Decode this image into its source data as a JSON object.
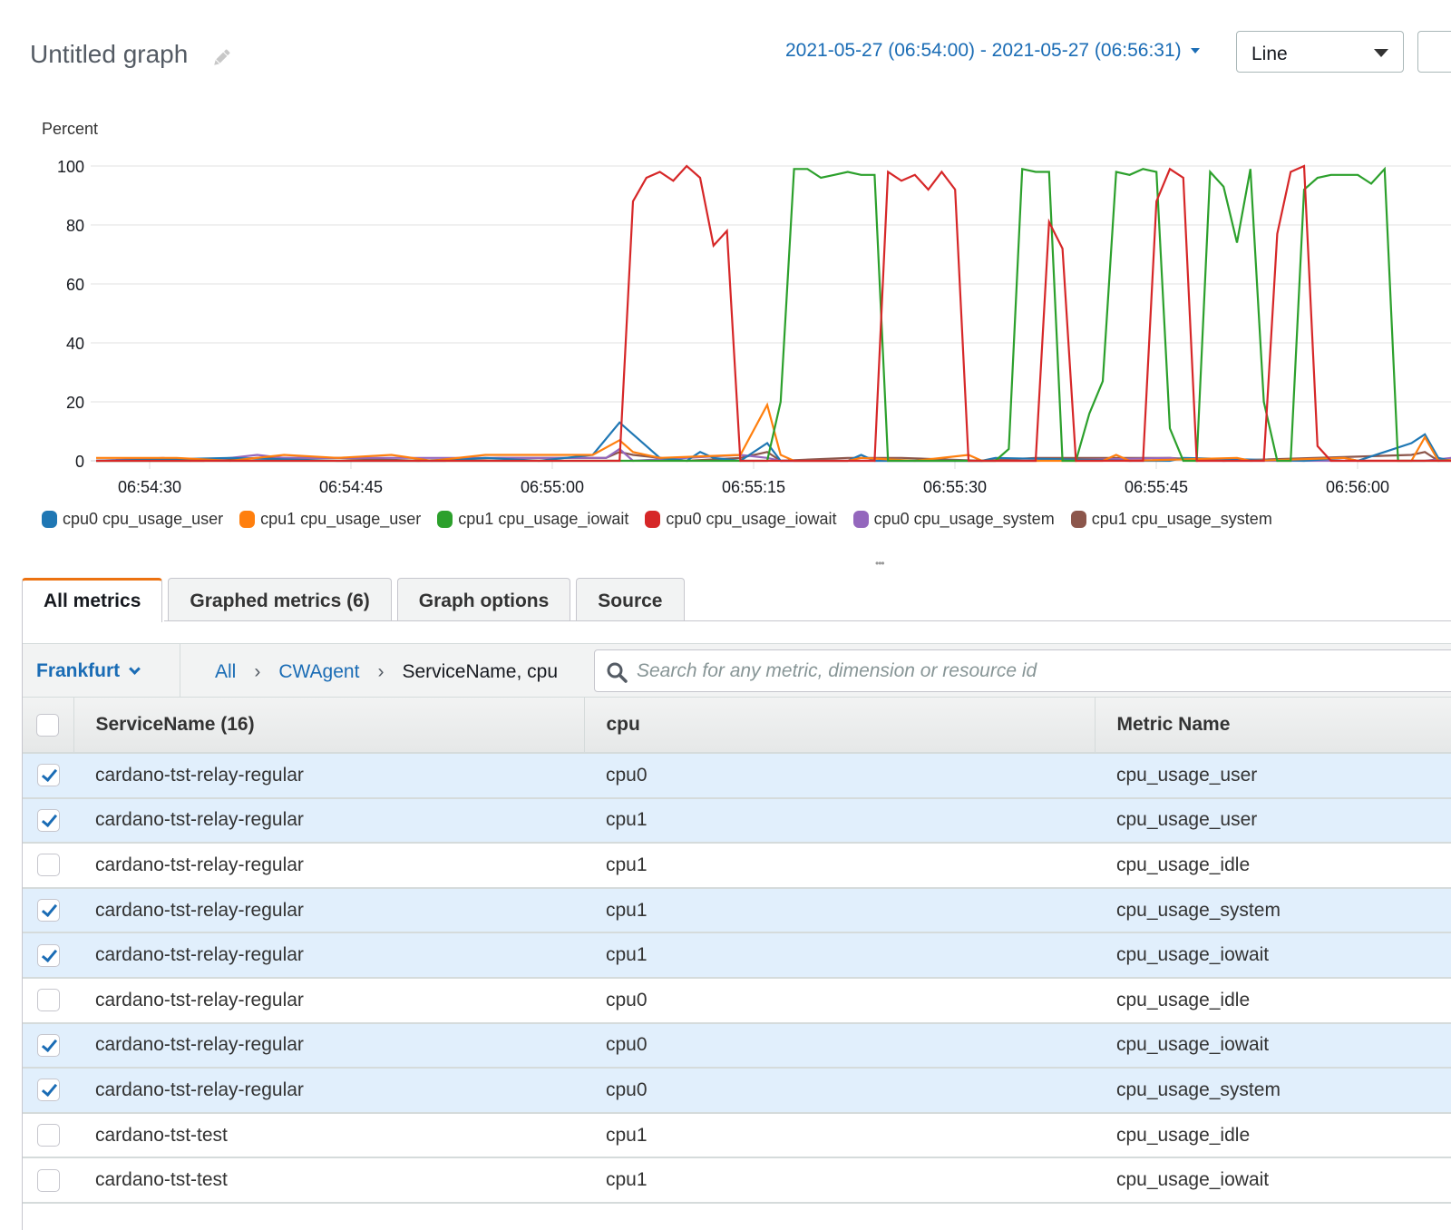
{
  "header": {
    "title": "Untitled graph",
    "edit_icon": "pencil-icon",
    "date_range": "2021-05-27 (06:54:00) - 2021-05-27 (06:56:31)",
    "graph_type": "Line"
  },
  "chart_data": {
    "type": "line",
    "title": "Untitled graph",
    "ylabel": "Percent",
    "xlabel": "",
    "ylim": [
      0,
      100
    ],
    "yticks": [
      0,
      20,
      40,
      60,
      80,
      100
    ],
    "xticks": [
      "06:54:30",
      "06:54:45",
      "06:55:00",
      "06:55:15",
      "06:55:30",
      "06:55:45",
      "06:56:00"
    ],
    "grid": true,
    "legend_position": "bottom",
    "x_seconds_from_06_54_26": "index = seconds offset (1s resolution)",
    "series": [
      {
        "name": "cpu0 cpu_usage_user",
        "color": "#1f77b4",
        "points": [
          [
            0,
            0
          ],
          [
            10,
            1
          ],
          [
            18,
            0
          ],
          [
            26,
            0
          ],
          [
            29,
            1
          ],
          [
            33,
            0
          ],
          [
            37,
            2
          ],
          [
            39,
            13
          ],
          [
            40,
            9
          ],
          [
            42,
            1
          ],
          [
            44,
            0
          ],
          [
            45,
            3
          ],
          [
            46,
            1
          ],
          [
            48,
            0
          ],
          [
            50,
            6
          ],
          [
            51,
            0
          ],
          [
            56,
            0
          ],
          [
            57,
            2
          ],
          [
            58,
            0
          ],
          [
            66,
            0
          ],
          [
            67,
            1
          ],
          [
            77,
            0
          ],
          [
            80,
            0
          ],
          [
            81,
            1
          ],
          [
            90,
            0
          ],
          [
            93,
            1
          ],
          [
            94,
            0
          ],
          [
            98,
            6
          ],
          [
            99,
            9
          ],
          [
            100,
            1
          ],
          [
            101,
            0
          ],
          [
            107,
            0
          ],
          [
            108,
            1
          ],
          [
            111,
            0
          ],
          [
            120,
            0
          ],
          [
            122,
            1
          ],
          [
            125,
            0
          ],
          [
            128,
            2
          ],
          [
            129,
            0
          ],
          [
            134,
            0
          ],
          [
            135,
            4
          ],
          [
            136,
            0
          ],
          [
            145,
            0
          ],
          [
            146,
            0
          ]
        ]
      },
      {
        "name": "cpu1 cpu_usage_user",
        "color": "#ff7f0e",
        "points": [
          [
            0,
            1
          ],
          [
            6,
            1
          ],
          [
            10,
            0
          ],
          [
            14,
            2
          ],
          [
            18,
            1
          ],
          [
            22,
            2
          ],
          [
            25,
            0
          ],
          [
            29,
            2
          ],
          [
            37,
            2
          ],
          [
            39,
            7
          ],
          [
            40,
            3
          ],
          [
            42,
            1
          ],
          [
            48,
            2
          ],
          [
            50,
            19
          ],
          [
            51,
            2
          ],
          [
            52,
            0
          ],
          [
            56,
            0
          ],
          [
            57,
            1
          ],
          [
            61,
            0
          ],
          [
            65,
            2
          ],
          [
            66,
            0
          ],
          [
            70,
            0
          ],
          [
            75,
            0
          ],
          [
            76,
            2
          ],
          [
            77,
            0
          ],
          [
            85,
            1
          ],
          [
            86,
            0
          ],
          [
            93,
            1
          ],
          [
            94,
            0
          ],
          [
            98,
            0
          ],
          [
            99,
            8
          ],
          [
            100,
            0
          ],
          [
            107,
            2
          ],
          [
            108,
            0
          ],
          [
            113,
            0
          ],
          [
            114,
            6
          ],
          [
            115,
            1
          ],
          [
            116,
            0
          ],
          [
            125,
            1
          ],
          [
            128,
            2
          ],
          [
            129,
            0
          ],
          [
            137,
            0
          ],
          [
            138,
            19
          ],
          [
            139,
            1
          ],
          [
            140,
            0
          ],
          [
            145,
            1
          ],
          [
            146,
            0
          ]
        ]
      },
      {
        "name": "cpu1 cpu_usage_iowait",
        "color": "#2ca02c",
        "points": [
          [
            0,
            0
          ],
          [
            39,
            0
          ],
          [
            40,
            0
          ],
          [
            50,
            0
          ],
          [
            51,
            20
          ],
          [
            52,
            99
          ],
          [
            53,
            99
          ],
          [
            54,
            96
          ],
          [
            55,
            97
          ],
          [
            56,
            98
          ],
          [
            57,
            97
          ],
          [
            58,
            97
          ],
          [
            59,
            0
          ],
          [
            66,
            0
          ],
          [
            67,
            0
          ],
          [
            68,
            4
          ],
          [
            69,
            99
          ],
          [
            70,
            98
          ],
          [
            71,
            98
          ],
          [
            72,
            0
          ],
          [
            73,
            0
          ],
          [
            74,
            16
          ],
          [
            75,
            27
          ],
          [
            76,
            98
          ],
          [
            77,
            97
          ],
          [
            78,
            99
          ],
          [
            79,
            98
          ],
          [
            80,
            11
          ],
          [
            81,
            0
          ],
          [
            82,
            0
          ],
          [
            83,
            98
          ],
          [
            84,
            93
          ],
          [
            85,
            74
          ],
          [
            86,
            99
          ],
          [
            87,
            20
          ],
          [
            88,
            0
          ],
          [
            89,
            0
          ],
          [
            90,
            92
          ],
          [
            91,
            96
          ],
          [
            92,
            97
          ],
          [
            93,
            97
          ],
          [
            94,
            97
          ],
          [
            95,
            94
          ],
          [
            96,
            99
          ],
          [
            97,
            0
          ],
          [
            146,
            0
          ]
        ]
      },
      {
        "name": "cpu0 cpu_usage_iowait",
        "color": "#d62728",
        "points": [
          [
            0,
            0
          ],
          [
            38,
            0
          ],
          [
            39,
            0
          ],
          [
            40,
            88
          ],
          [
            41,
            96
          ],
          [
            42,
            98
          ],
          [
            43,
            95
          ],
          [
            44,
            100
          ],
          [
            45,
            96
          ],
          [
            46,
            73
          ],
          [
            47,
            78
          ],
          [
            48,
            0
          ],
          [
            56,
            0
          ],
          [
            57,
            0
          ],
          [
            58,
            0
          ],
          [
            59,
            98
          ],
          [
            60,
            95
          ],
          [
            61,
            97
          ],
          [
            62,
            92
          ],
          [
            63,
            98
          ],
          [
            64,
            92
          ],
          [
            65,
            0
          ],
          [
            66,
            0
          ],
          [
            67,
            0
          ],
          [
            68,
            0
          ],
          [
            69,
            0
          ],
          [
            70,
            0
          ],
          [
            71,
            81
          ],
          [
            72,
            72
          ],
          [
            73,
            0
          ],
          [
            78,
            0
          ],
          [
            79,
            88
          ],
          [
            80,
            99
          ],
          [
            81,
            96
          ],
          [
            82,
            0
          ],
          [
            87,
            0
          ],
          [
            88,
            77
          ],
          [
            89,
            98
          ],
          [
            90,
            100
          ],
          [
            91,
            5
          ],
          [
            92,
            0
          ],
          [
            146,
            0
          ]
        ]
      },
      {
        "name": "cpu0 cpu_usage_system",
        "color": "#9467bd",
        "points": [
          [
            0,
            0
          ],
          [
            5,
            1
          ],
          [
            7,
            0
          ],
          [
            10,
            1
          ],
          [
            12,
            2
          ],
          [
            14,
            1
          ],
          [
            20,
            1
          ],
          [
            26,
            1
          ],
          [
            38,
            1
          ],
          [
            39,
            4
          ],
          [
            40,
            0
          ],
          [
            44,
            1
          ],
          [
            48,
            2
          ],
          [
            50,
            1
          ],
          [
            51,
            0
          ],
          [
            56,
            0
          ],
          [
            60,
            0
          ],
          [
            70,
            0
          ],
          [
            80,
            1
          ],
          [
            82,
            0
          ],
          [
            89,
            0
          ],
          [
            96,
            0
          ],
          [
            99,
            0
          ],
          [
            101,
            1
          ],
          [
            107,
            0
          ],
          [
            110,
            0
          ],
          [
            114,
            4
          ],
          [
            115,
            0
          ],
          [
            120,
            1
          ],
          [
            130,
            1
          ],
          [
            137,
            0
          ],
          [
            138,
            2
          ],
          [
            139,
            0
          ],
          [
            146,
            0
          ]
        ]
      },
      {
        "name": "cpu1 cpu_usage_system",
        "color": "#8c564b",
        "points": [
          [
            0,
            0
          ],
          [
            8,
            0
          ],
          [
            12,
            1
          ],
          [
            18,
            1
          ],
          [
            24,
            0
          ],
          [
            30,
            1
          ],
          [
            38,
            1
          ],
          [
            39,
            3
          ],
          [
            40,
            2
          ],
          [
            44,
            0
          ],
          [
            48,
            1
          ],
          [
            50,
            3
          ],
          [
            51,
            0
          ],
          [
            56,
            1
          ],
          [
            60,
            1
          ],
          [
            66,
            0
          ],
          [
            70,
            1
          ],
          [
            80,
            1
          ],
          [
            84,
            0
          ],
          [
            98,
            2
          ],
          [
            99,
            3
          ],
          [
            100,
            0
          ],
          [
            107,
            1
          ],
          [
            112,
            1
          ],
          [
            114,
            3
          ],
          [
            115,
            0
          ],
          [
            120,
            1
          ],
          [
            126,
            0
          ],
          [
            130,
            1
          ],
          [
            137,
            0
          ],
          [
            138,
            3
          ],
          [
            139,
            0
          ],
          [
            146,
            0
          ]
        ]
      }
    ]
  },
  "legend": [
    {
      "label": "cpu0 cpu_usage_user",
      "color": "#1f77b4"
    },
    {
      "label": "cpu1 cpu_usage_user",
      "color": "#ff7f0e"
    },
    {
      "label": "cpu1 cpu_usage_iowait",
      "color": "#2ca02c"
    },
    {
      "label": "cpu0 cpu_usage_iowait",
      "color": "#d62728"
    },
    {
      "label": "cpu0 cpu_usage_system",
      "color": "#9467bd"
    },
    {
      "label": "cpu1 cpu_usage_system",
      "color": "#8c564b"
    }
  ],
  "tabs": [
    {
      "label": "All metrics",
      "active": true
    },
    {
      "label": "Graphed metrics (6)",
      "active": false
    },
    {
      "label": "Graph options",
      "active": false
    },
    {
      "label": "Source",
      "active": false
    }
  ],
  "toolbar": {
    "region": "Frankfurt",
    "breadcrumb": {
      "all": "All",
      "namespace": "CWAgent",
      "current": "ServiceName, cpu",
      "separator": "›"
    },
    "search_placeholder": "Search for any metric, dimension or resource id"
  },
  "table": {
    "columns": [
      "ServiceName (16)",
      "cpu",
      "Metric Name"
    ],
    "rows": [
      {
        "checked": true,
        "service": "cardano-tst-relay-regular",
        "cpu": "cpu0",
        "metric": "cpu_usage_user"
      },
      {
        "checked": true,
        "service": "cardano-tst-relay-regular",
        "cpu": "cpu1",
        "metric": "cpu_usage_user"
      },
      {
        "checked": false,
        "service": "cardano-tst-relay-regular",
        "cpu": "cpu1",
        "metric": "cpu_usage_idle"
      },
      {
        "checked": true,
        "service": "cardano-tst-relay-regular",
        "cpu": "cpu1",
        "metric": "cpu_usage_system"
      },
      {
        "checked": true,
        "service": "cardano-tst-relay-regular",
        "cpu": "cpu1",
        "metric": "cpu_usage_iowait"
      },
      {
        "checked": false,
        "service": "cardano-tst-relay-regular",
        "cpu": "cpu0",
        "metric": "cpu_usage_idle"
      },
      {
        "checked": true,
        "service": "cardano-tst-relay-regular",
        "cpu": "cpu0",
        "metric": "cpu_usage_iowait"
      },
      {
        "checked": true,
        "service": "cardano-tst-relay-regular",
        "cpu": "cpu0",
        "metric": "cpu_usage_system"
      },
      {
        "checked": false,
        "service": "cardano-tst-test",
        "cpu": "cpu1",
        "metric": "cpu_usage_idle"
      },
      {
        "checked": false,
        "service": "cardano-tst-test",
        "cpu": "cpu1",
        "metric": "cpu_usage_iowait"
      }
    ]
  }
}
